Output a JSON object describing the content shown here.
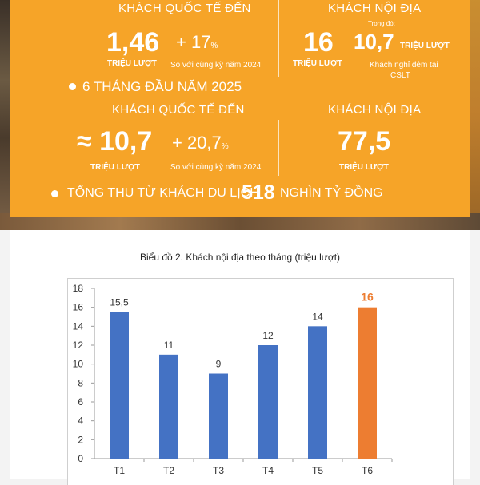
{
  "banner": {
    "intl_label": "KHÁCH QUỐC TẾ ĐẾN",
    "intl_value": "1,46",
    "intl_unit": "TRIỆU LƯỢT",
    "intl_growth": "+ 17",
    "intl_growth_unit": "%",
    "intl_compare": "So với cùng kỳ năm 2024",
    "dom_label": "KHÁCH NỘI ĐỊA",
    "dom_value": "16",
    "dom_unit": "TRIỆU LƯỢT",
    "dom_note_prefix": "Trong đó:",
    "dom_overnight": "10,7",
    "dom_overnight_unit": "TRIỆU LƯỢT",
    "dom_overnight_note_1": "Khách nghỉ đêm tại",
    "dom_overnight_note_2": "CSLT",
    "h1_heading": "6 THÁNG ĐẦU NĂM 2025",
    "h1_intl_label": "KHÁCH QUỐC TẾ ĐẾN",
    "h1_intl_value": "≈ 10,7",
    "h1_intl_unit": "TRIỆU LƯỢT",
    "h1_growth": "+ 20,7",
    "h1_growth_unit": "%",
    "h1_compare": "So với cùng kỳ năm 2024",
    "h1_dom_label": "KHÁCH NỘI ĐỊA",
    "h1_dom_value": "77,5",
    "h1_dom_unit": "TRIỆU LƯỢT",
    "revenue_label": "TỔNG THU TỪ KHÁCH DU LỊCH",
    "revenue_value": "518",
    "revenue_unit": "NGHÌN TỶ ĐỒNG"
  },
  "colors": {
    "orange": "#f6a428",
    "bar_blue": "#4472c4",
    "bar_highlight": "#ed7d31"
  },
  "chart_data": {
    "type": "bar",
    "title": "Biểu đồ 2. Khách nội địa theo tháng (triệu lượt)",
    "categories": [
      "T1",
      "T2",
      "T3",
      "T4",
      "T5",
      "T6"
    ],
    "values": [
      15.5,
      11,
      9,
      12,
      14,
      16
    ],
    "labels": [
      "15,5",
      "11",
      "9",
      "12",
      "14",
      "16"
    ],
    "highlight_index": 5,
    "ylim": [
      0,
      18
    ],
    "yticks": [
      0,
      2,
      4,
      6,
      8,
      10,
      12,
      14,
      16,
      18
    ],
    "grid": false,
    "legend": "none"
  }
}
